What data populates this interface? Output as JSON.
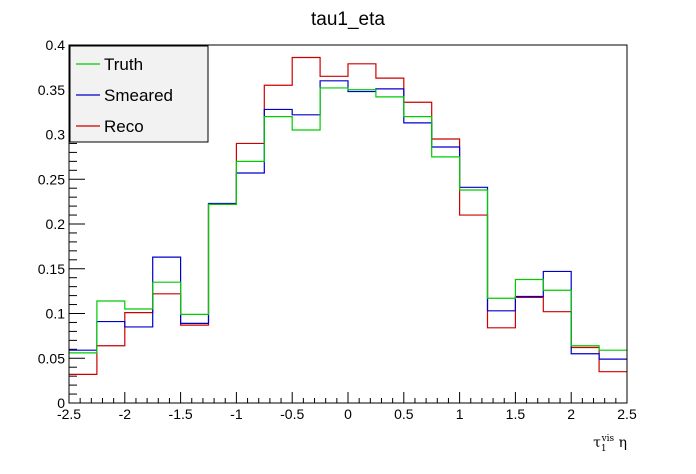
{
  "chart_data": {
    "type": "histogram",
    "title": "tau1_eta",
    "xlabel": "τ₁ᵛⁱˢ η",
    "xlabel_parts": {
      "base": "τ",
      "sub": "1",
      "sup": "vis",
      "rest": "η"
    },
    "ylabel": "",
    "xlim": [
      -2.5,
      2.5
    ],
    "ylim": [
      0,
      0.4
    ],
    "x_ticks": [
      "-2.5",
      "-2",
      "-1.5",
      "-1",
      "-0.5",
      "0",
      "0.5",
      "1",
      "1.5",
      "2",
      "2.5"
    ],
    "y_ticks": [
      "0",
      "0.05",
      "0.1",
      "0.15",
      "0.2",
      "0.25",
      "0.3",
      "0.35",
      "0.4"
    ],
    "bin_edges": [
      -2.5,
      -2.25,
      -2.0,
      -1.75,
      -1.5,
      -1.25,
      -1.0,
      -0.75,
      -0.5,
      -0.25,
      0.0,
      0.25,
      0.5,
      0.75,
      1.0,
      1.25,
      1.5,
      1.75,
      2.0,
      2.25,
      2.5
    ],
    "legend_position": "top-left",
    "series": [
      {
        "name": "Truth",
        "color": "#00cc00",
        "values": [
          0.056,
          0.114,
          0.105,
          0.135,
          0.099,
          0.222,
          0.27,
          0.32,
          0.305,
          0.352,
          0.35,
          0.342,
          0.32,
          0.275,
          0.238,
          0.117,
          0.138,
          0.126,
          0.064,
          0.059
        ]
      },
      {
        "name": "Smeared",
        "color": "#0000cc",
        "values": [
          0.059,
          0.091,
          0.085,
          0.163,
          0.089,
          0.223,
          0.257,
          0.328,
          0.322,
          0.36,
          0.348,
          0.351,
          0.313,
          0.286,
          0.241,
          0.103,
          0.119,
          0.147,
          0.055,
          0.049
        ]
      },
      {
        "name": "Reco",
        "color": "#cc0000",
        "values": [
          0.032,
          0.064,
          0.101,
          0.122,
          0.087,
          0.222,
          0.29,
          0.355,
          0.386,
          0.365,
          0.379,
          0.363,
          0.336,
          0.295,
          0.21,
          0.084,
          0.118,
          0.102,
          0.062,
          0.035
        ]
      }
    ]
  }
}
